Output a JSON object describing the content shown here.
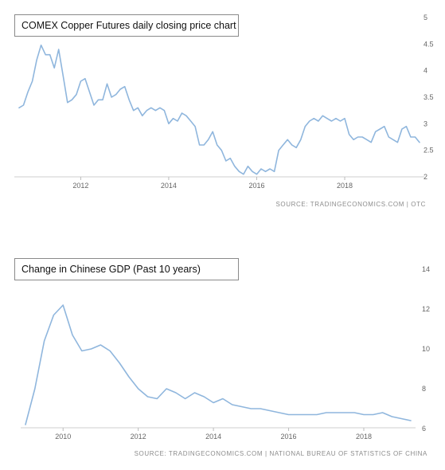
{
  "chart_data": [
    {
      "type": "line",
      "title": "COMEX Copper Futures daily closing price chart",
      "source": "SOURCE: TRADINGECONOMICS.COM | OTC",
      "x_ticks": [
        2012,
        2014,
        2016,
        2018
      ],
      "xlim": [
        2010.6,
        2019.7
      ],
      "ylim": [
        2,
        5
      ],
      "y_ticks": [
        "2",
        "2.5",
        "3",
        "3.5",
        "4",
        "4.5",
        "5"
      ],
      "grid": false,
      "line_color": "#8fb6dd",
      "x": [
        2010.6,
        2010.7,
        2010.8,
        2010.9,
        2011.0,
        2011.1,
        2011.2,
        2011.3,
        2011.4,
        2011.5,
        2011.6,
        2011.7,
        2011.8,
        2011.9,
        2012.0,
        2012.1,
        2012.2,
        2012.3,
        2012.4,
        2012.5,
        2012.6,
        2012.7,
        2012.8,
        2012.9,
        2013.0,
        2013.1,
        2013.2,
        2013.3,
        2013.4,
        2013.5,
        2013.6,
        2013.7,
        2013.8,
        2013.9,
        2014.0,
        2014.1,
        2014.2,
        2014.3,
        2014.4,
        2014.5,
        2014.6,
        2014.7,
        2014.8,
        2014.9,
        2015.0,
        2015.1,
        2015.2,
        2015.3,
        2015.4,
        2015.5,
        2015.6,
        2015.7,
        2015.8,
        2015.9,
        2016.0,
        2016.1,
        2016.2,
        2016.3,
        2016.4,
        2016.5,
        2016.6,
        2016.7,
        2016.8,
        2016.9,
        2017.0,
        2017.1,
        2017.2,
        2017.3,
        2017.4,
        2017.5,
        2017.6,
        2017.7,
        2017.8,
        2017.9,
        2018.0,
        2018.1,
        2018.2,
        2018.3,
        2018.4,
        2018.5,
        2018.6,
        2018.7,
        2018.8,
        2018.9,
        2019.0,
        2019.1,
        2019.2,
        2019.3,
        2019.4,
        2019.5,
        2019.6,
        2019.7
      ],
      "y": [
        3.3,
        3.35,
        3.6,
        3.8,
        4.2,
        4.48,
        4.3,
        4.3,
        4.05,
        4.4,
        3.9,
        3.4,
        3.45,
        3.55,
        3.8,
        3.85,
        3.6,
        3.35,
        3.45,
        3.45,
        3.75,
        3.5,
        3.55,
        3.65,
        3.7,
        3.45,
        3.25,
        3.3,
        3.15,
        3.25,
        3.3,
        3.25,
        3.3,
        3.25,
        3.0,
        3.1,
        3.05,
        3.2,
        3.15,
        3.05,
        2.95,
        2.6,
        2.6,
        2.7,
        2.85,
        2.6,
        2.5,
        2.3,
        2.35,
        2.2,
        2.1,
        2.05,
        2.2,
        2.1,
        2.05,
        2.15,
        2.1,
        2.15,
        2.1,
        2.5,
        2.6,
        2.7,
        2.6,
        2.55,
        2.7,
        2.95,
        3.05,
        3.1,
        3.05,
        3.15,
        3.1,
        3.05,
        3.1,
        3.05,
        3.1,
        2.8,
        2.7,
        2.75,
        2.75,
        2.7,
        2.65,
        2.85,
        2.9,
        2.95,
        2.75,
        2.7,
        2.65,
        2.9,
        2.95,
        2.75,
        2.75,
        2.65
      ]
    },
    {
      "type": "line",
      "title": "Change in Chinese GDP (Past 10 years)",
      "source": "SOURCE: TRADINGECONOMICS.COM | NATIONAL BUREAU OF STATISTICS OF CHINA",
      "x_ticks": [
        2010,
        2012,
        2014,
        2016,
        2018
      ],
      "xlim": [
        2009.0,
        2019.25
      ],
      "ylim": [
        6,
        14
      ],
      "y_ticks": [
        "6",
        "8",
        "10",
        "12",
        "14"
      ],
      "grid": false,
      "line_color": "#8fb6dd",
      "x": [
        2009.0,
        2009.25,
        2009.5,
        2009.75,
        2010.0,
        2010.25,
        2010.5,
        2010.75,
        2011.0,
        2011.25,
        2011.5,
        2011.75,
        2012.0,
        2012.25,
        2012.5,
        2012.75,
        2013.0,
        2013.25,
        2013.5,
        2013.75,
        2014.0,
        2014.25,
        2014.5,
        2014.75,
        2015.0,
        2015.25,
        2015.5,
        2015.75,
        2016.0,
        2016.25,
        2016.5,
        2016.75,
        2017.0,
        2017.25,
        2017.5,
        2017.75,
        2018.0,
        2018.25,
        2018.5,
        2018.75,
        2019.0,
        2019.25
      ],
      "y": [
        6.2,
        8.0,
        10.4,
        11.7,
        12.2,
        10.7,
        9.9,
        10.0,
        10.2,
        9.9,
        9.3,
        8.6,
        8.0,
        7.6,
        7.5,
        8.0,
        7.8,
        7.5,
        7.8,
        7.6,
        7.3,
        7.5,
        7.2,
        7.1,
        7.0,
        7.0,
        6.9,
        6.8,
        6.7,
        6.7,
        6.7,
        6.7,
        6.8,
        6.8,
        6.8,
        6.8,
        6.7,
        6.7,
        6.8,
        6.6,
        6.5,
        6.4
      ]
    }
  ]
}
